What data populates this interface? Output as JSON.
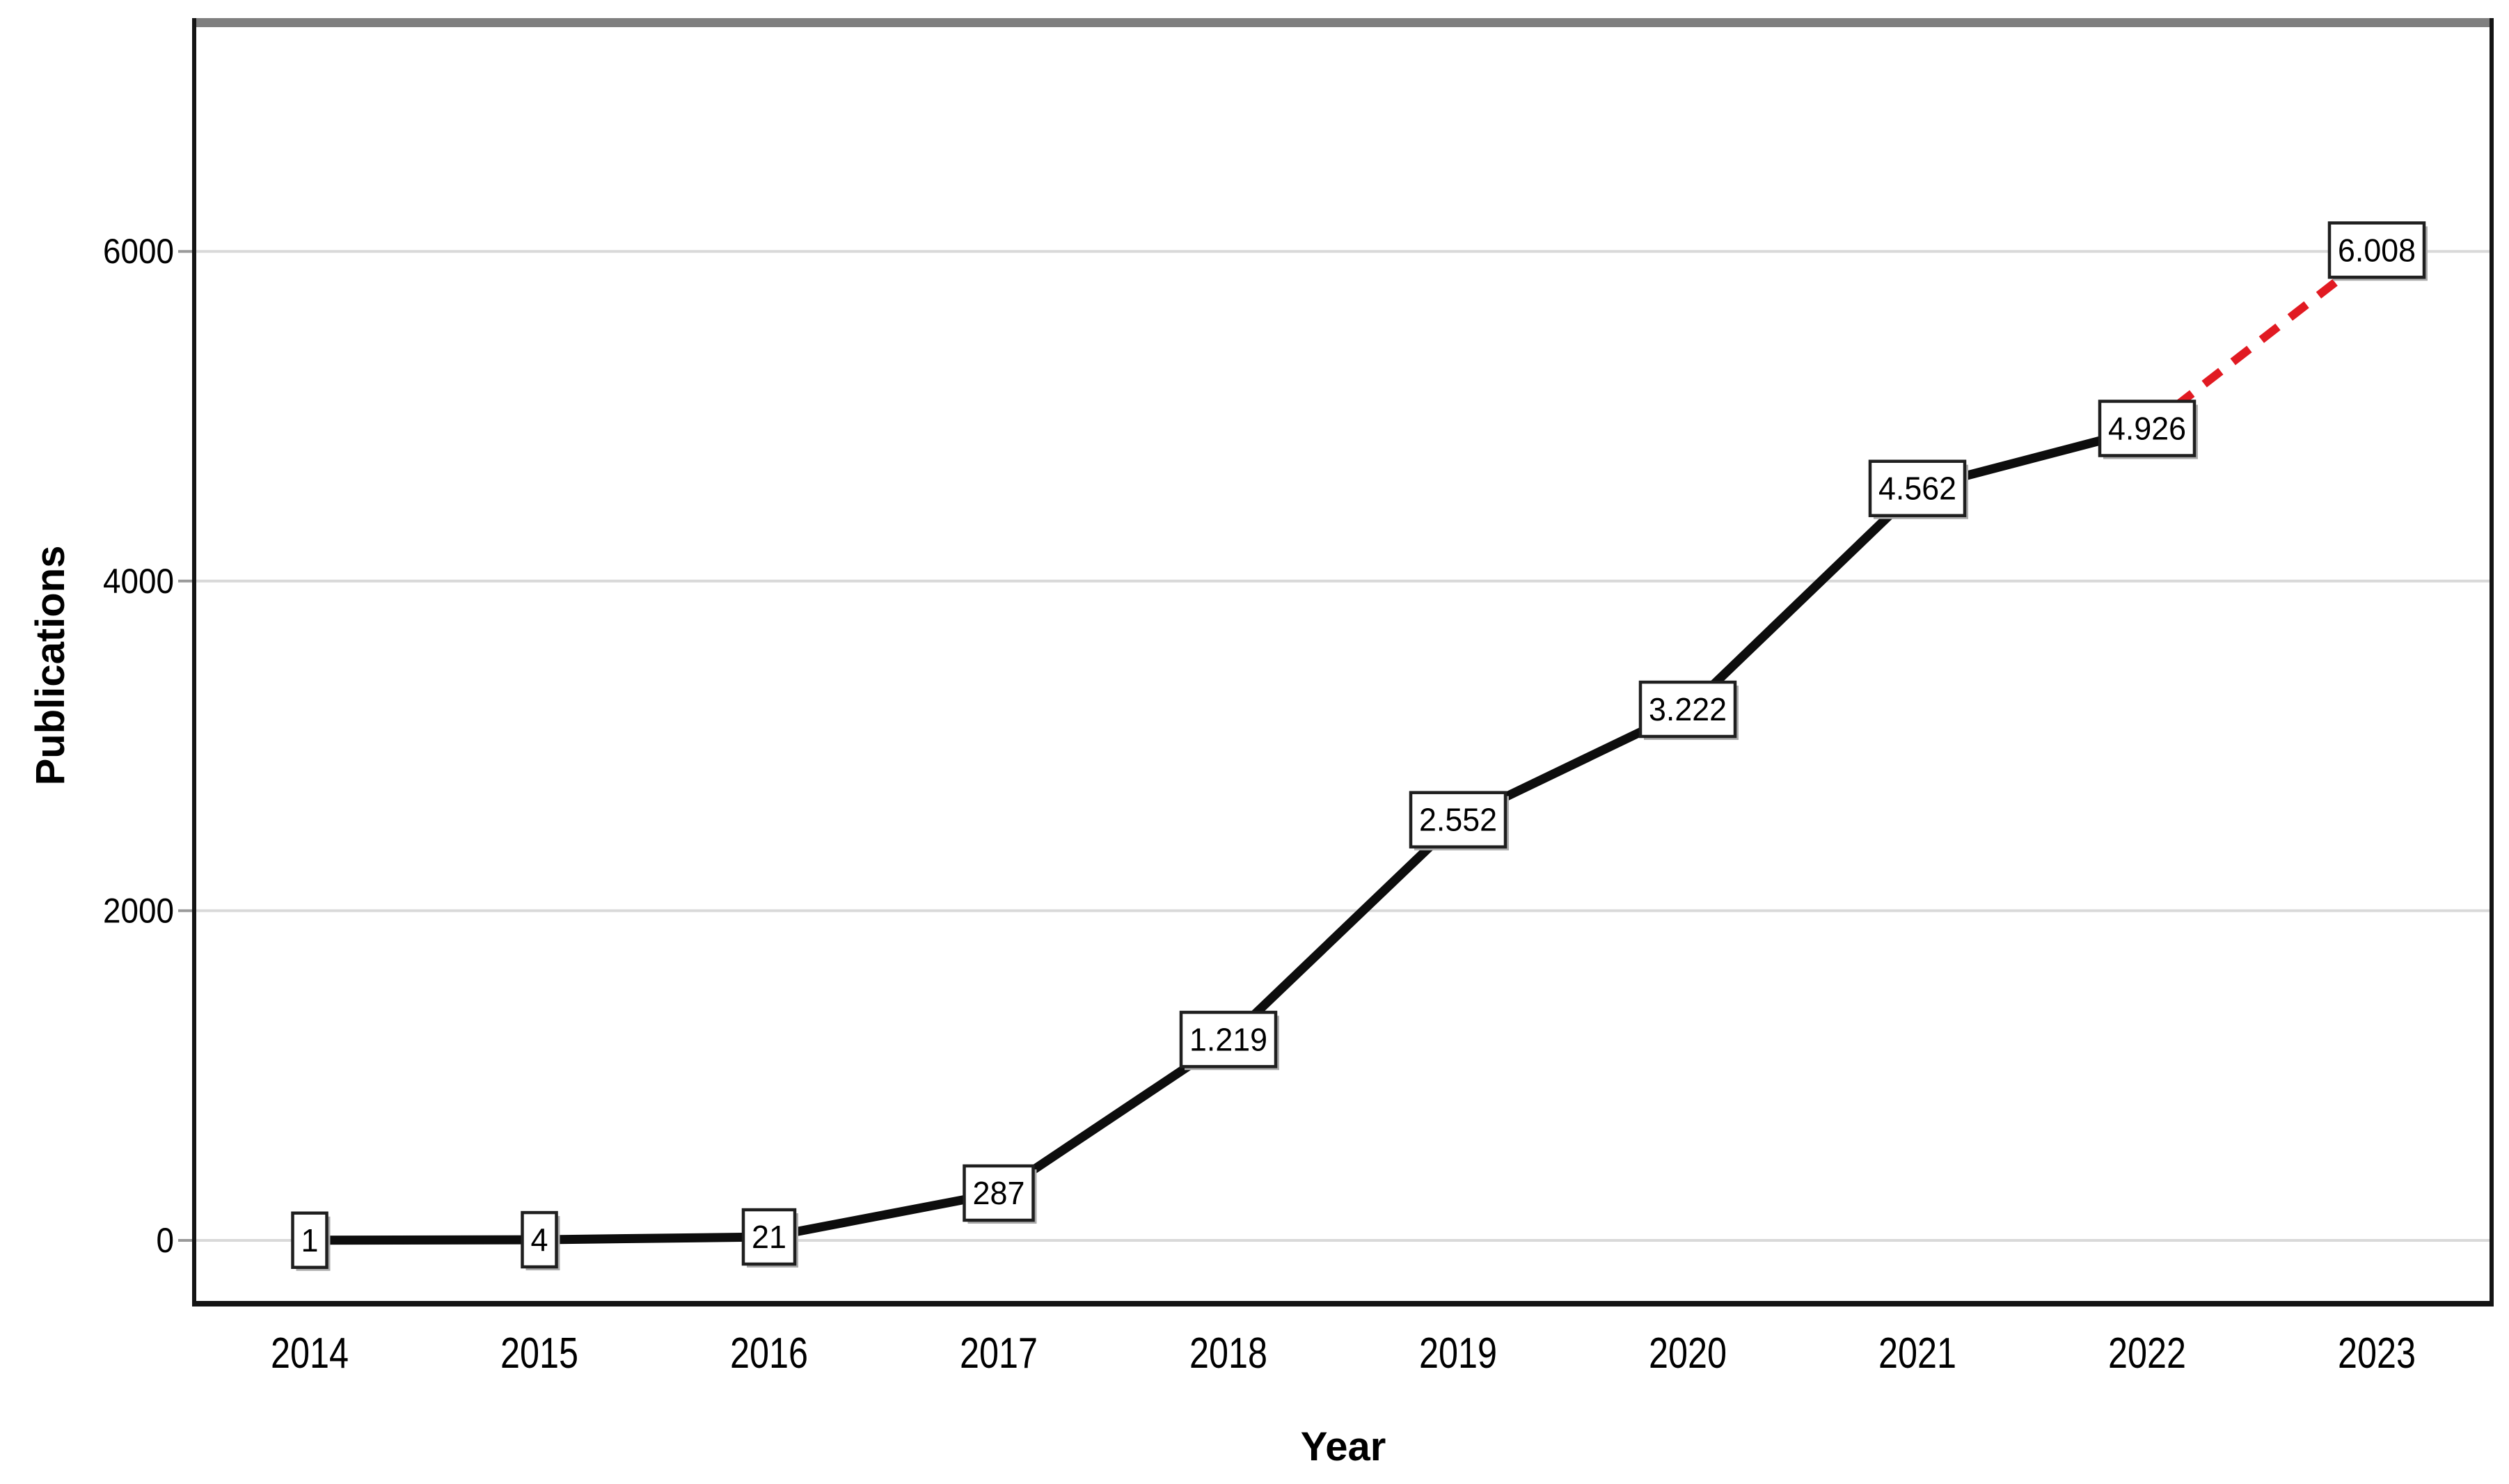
{
  "chart_data": {
    "type": "line",
    "title": "",
    "xlabel": "Year",
    "ylabel": "Publications",
    "x": [
      2014,
      2015,
      2016,
      2017,
      2018,
      2019,
      2020,
      2021,
      2022,
      2023
    ],
    "series": [
      {
        "name": "Publications",
        "values": [
          1,
          4,
          21,
          287,
          1219,
          2552,
          3222,
          4562,
          4926,
          6008
        ],
        "point_labels": [
          "1",
          "4",
          "21",
          "287",
          "1.219",
          "2.552",
          "3.222",
          "4.562",
          "4.926",
          "6.008"
        ],
        "color": "#0d0d0d",
        "style": "solid"
      }
    ],
    "projection": {
      "from_x": 2022,
      "to_x": 2023,
      "from_value": 4926,
      "to_value": 6008,
      "color": "#e11a22",
      "style": "dashed"
    },
    "yticks": [
      "0",
      "2000",
      "4000",
      "6000"
    ],
    "ytick_values": [
      0,
      2000,
      4000,
      6000
    ],
    "xticks": [
      "2014",
      "2015",
      "2016",
      "2017",
      "2018",
      "2019",
      "2020",
      "2021",
      "2022",
      "2023"
    ],
    "ylim": [
      0,
      7300
    ],
    "grid": "horizontal",
    "legend": "none",
    "data_label_boxes": true
  },
  "styles": {
    "background": "#ffffff",
    "grid_color": "#d9d9d9",
    "frame_side_color": "#141414",
    "frame_top_color": "#7f7f7f",
    "axis_tick_color": "#9a9a9a",
    "label_box_fill": "#ffffff",
    "label_box_border": "#1f1f1f",
    "label_box_shadow": "#ababab",
    "series_color": "#0d0d0d",
    "projection_color": "#e11a22",
    "text_color": "#000000"
  }
}
